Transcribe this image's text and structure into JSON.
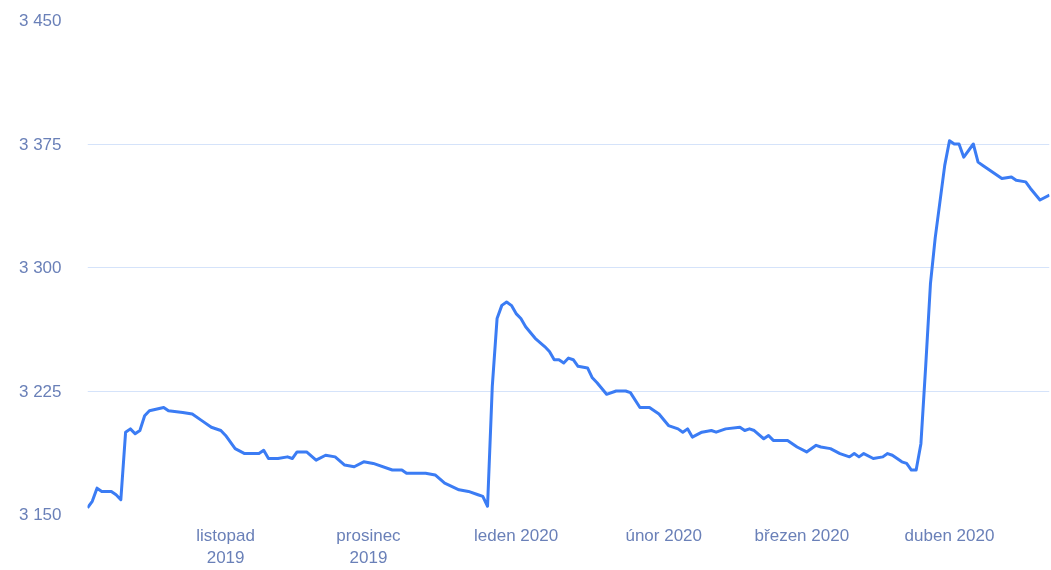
{
  "chart_data": {
    "type": "line",
    "color": "#3b7cf4",
    "line_style": "solid",
    "marker": "none",
    "grid": "y",
    "x": [
      "2019-10-03",
      "2019-10-04",
      "2019-10-05",
      "2019-10-06",
      "2019-10-08",
      "2019-10-09",
      "2019-10-10",
      "2019-10-11",
      "2019-10-12",
      "2019-10-13",
      "2019-10-14",
      "2019-10-15",
      "2019-10-16",
      "2019-10-19",
      "2019-10-20",
      "2019-10-23",
      "2019-10-25",
      "2019-10-27",
      "2019-10-29",
      "2019-10-31",
      "2019-11-01",
      "2019-11-03",
      "2019-11-05",
      "2019-11-08",
      "2019-11-09",
      "2019-11-10",
      "2019-11-12",
      "2019-11-14",
      "2019-11-15",
      "2019-11-16",
      "2019-11-18",
      "2019-11-20",
      "2019-11-22",
      "2019-11-24",
      "2019-11-26",
      "2019-11-28",
      "2019-11-30",
      "2019-12-02",
      "2019-12-06",
      "2019-12-08",
      "2019-12-09",
      "2019-12-12",
      "2019-12-13",
      "2019-12-15",
      "2019-12-17",
      "2019-12-20",
      "2019-12-22",
      "2019-12-24",
      "2019-12-25",
      "2019-12-26",
      "2019-12-27",
      "2019-12-28",
      "2019-12-29",
      "2019-12-30",
      "2019-12-31",
      "2020-01-01",
      "2020-01-02",
      "2020-01-03",
      "2020-01-05",
      "2020-01-07",
      "2020-01-08",
      "2020-01-09",
      "2020-01-10",
      "2020-01-11",
      "2020-01-12",
      "2020-01-13",
      "2020-01-14",
      "2020-01-16",
      "2020-01-17",
      "2020-01-18",
      "2020-01-20",
      "2020-01-22",
      "2020-01-24",
      "2020-01-25",
      "2020-01-27",
      "2020-01-29",
      "2020-01-31",
      "2020-02-02",
      "2020-02-04",
      "2020-02-05",
      "2020-02-06",
      "2020-02-07",
      "2020-02-09",
      "2020-02-11",
      "2020-02-12",
      "2020-02-14",
      "2020-02-17",
      "2020-02-18",
      "2020-02-19",
      "2020-02-20",
      "2020-02-22",
      "2020-02-23",
      "2020-02-24",
      "2020-02-26",
      "2020-02-27",
      "2020-02-29",
      "2020-03-02",
      "2020-03-04",
      "2020-03-05",
      "2020-03-07",
      "2020-03-09",
      "2020-03-11",
      "2020-03-12",
      "2020-03-13",
      "2020-03-14",
      "2020-03-16",
      "2020-03-18",
      "2020-03-19",
      "2020-03-20",
      "2020-03-22",
      "2020-03-23",
      "2020-03-24",
      "2020-03-25",
      "2020-03-26",
      "2020-03-27",
      "2020-03-28",
      "2020-03-29",
      "2020-03-30",
      "2020-03-31",
      "2020-04-01",
      "2020-04-02",
      "2020-04-03",
      "2020-04-04",
      "2020-04-06",
      "2020-04-07",
      "2020-04-08",
      "2020-04-10",
      "2020-04-11",
      "2020-04-12",
      "2020-04-14",
      "2020-04-15",
      "2020-04-17",
      "2020-04-18",
      "2020-04-20",
      "2020-04-22"
    ],
    "values": [
      3154,
      3158,
      3166,
      3164,
      3164,
      3162,
      3159,
      3200,
      3202,
      3199,
      3201,
      3210,
      3213,
      3215,
      3213,
      3212,
      3211,
      3207,
      3203,
      3201,
      3198,
      3190,
      3187,
      3187,
      3189,
      3184,
      3184,
      3185,
      3184,
      3188,
      3188,
      3183,
      3186,
      3185,
      3180,
      3179,
      3182,
      3181,
      3177,
      3177,
      3175,
      3175,
      3175,
      3174,
      3169,
      3165,
      3164,
      3162,
      3161,
      3155,
      3228,
      3269,
      3277,
      3279,
      3277,
      3272,
      3269,
      3264,
      3257,
      3252,
      3249,
      3244,
      3244,
      3242,
      3245,
      3244,
      3240,
      3239,
      3233,
      3230,
      3223,
      3225,
      3225,
      3224,
      3215,
      3215,
      3211,
      3204,
      3202,
      3200,
      3202,
      3197,
      3200,
      3201,
      3200,
      3202,
      3203,
      3201,
      3202,
      3201,
      3196,
      3198,
      3195,
      3195,
      3195,
      3191,
      3188,
      3192,
      3191,
      3190,
      3187,
      3185,
      3187,
      3185,
      3187,
      3184,
      3185,
      3187,
      3186,
      3182,
      3181,
      3177,
      3177,
      3193,
      3240,
      3290,
      3318,
      3340,
      3362,
      3377,
      3375,
      3375,
      3367,
      3375,
      3364,
      3362,
      3358,
      3356,
      3354,
      3355,
      3353,
      3352,
      3348,
      3341,
      3344
    ],
    "xlim": [
      "2019-10-03",
      "2020-04-22"
    ],
    "xticks": [
      {
        "value": "2019-11-01",
        "label": "listopad\n2019"
      },
      {
        "value": "2019-12-01",
        "label": "prosinec\n2019"
      },
      {
        "value": "2020-01-01",
        "label": "leden 2020"
      },
      {
        "value": "2020-02-01",
        "label": "únor 2020"
      },
      {
        "value": "2020-03-01",
        "label": "březen 2020"
      },
      {
        "value": "2020-04-01",
        "label": "duben 2020"
      }
    ],
    "ylim": [
      3150,
      3450
    ],
    "yticks": [
      {
        "value": 3150,
        "label": "3 150"
      },
      {
        "value": 3225,
        "label": "3 225"
      },
      {
        "value": 3300,
        "label": "3 300"
      },
      {
        "value": 3375,
        "label": "3 375"
      },
      {
        "value": 3450,
        "label": "3 450"
      }
    ]
  }
}
